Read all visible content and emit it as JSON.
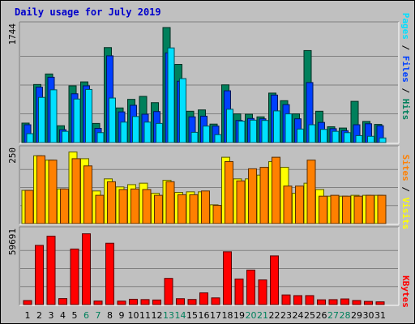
{
  "title": "Daily usage for July 2019",
  "colors": {
    "title": "#0000cc",
    "hits": "#00805c",
    "files": "#0040ff",
    "pages": "#00e0ff",
    "visits": "#ffff00",
    "sites": "#ff8000",
    "kbytes": "#ff0000",
    "weekend_label": "#00805c",
    "panel_bg": "#c0c0c0",
    "grid": "#ffffff"
  },
  "right_labels": {
    "pages": "Pages",
    "files": "Files",
    "hits": "Hits",
    "sites": "Sites",
    "visits": "Visits",
    "kbytes": "KBytes",
    "sep": " / "
  },
  "chart_data": [
    {
      "type": "bar",
      "panel": "hits-files-pages",
      "y_max_label": "1744",
      "ylim": [
        0,
        1744
      ],
      "categories": [
        "1",
        "2",
        "3",
        "4",
        "5",
        "6",
        "7",
        "8",
        "9",
        "10",
        "11",
        "12",
        "13",
        "14",
        "15",
        "16",
        "17",
        "18",
        "19",
        "20",
        "21",
        "22",
        "23",
        "24",
        "25",
        "26",
        "27",
        "28",
        "29",
        "30",
        "31"
      ],
      "weekend_days": [
        "6",
        "7",
        "13",
        "14",
        "20",
        "21",
        "27",
        "28"
      ],
      "series": [
        {
          "name": "Hits",
          "values": [
            295,
            880,
            1040,
            255,
            860,
            920,
            290,
            1440,
            525,
            655,
            700,
            605,
            1744,
            1185,
            475,
            495,
            280,
            875,
            435,
            430,
            390,
            750,
            635,
            435,
            1395,
            475,
            240,
            220,
            625,
            320,
            275
          ]
        },
        {
          "name": "Files",
          "values": [
            270,
            840,
            990,
            195,
            740,
            860,
            215,
            1315,
            465,
            565,
            430,
            470,
            1360,
            930,
            390,
            400,
            250,
            785,
            335,
            365,
            360,
            720,
            575,
            360,
            910,
            305,
            210,
            180,
            270,
            285,
            255
          ]
        },
        {
          "name": "Pages",
          "values": [
            135,
            685,
            800,
            170,
            660,
            805,
            150,
            675,
            310,
            395,
            310,
            290,
            1435,
            970,
            155,
            250,
            120,
            505,
            325,
            340,
            335,
            480,
            435,
            205,
            270,
            200,
            170,
            150,
            105,
            95,
            70
          ]
        }
      ]
    },
    {
      "type": "bar",
      "panel": "visits-sites",
      "y_max_label": "250",
      "ylim": [
        0,
        250
      ],
      "categories": [
        "1",
        "2",
        "3",
        "4",
        "5",
        "6",
        "7",
        "8",
        "9",
        "10",
        "11",
        "12",
        "13",
        "14",
        "15",
        "16",
        "17",
        "18",
        "19",
        "20",
        "21",
        "22",
        "23",
        "24",
        "25",
        "26",
        "27",
        "28",
        "29",
        "30",
        "31"
      ],
      "series": [
        {
          "name": "Visits",
          "values": [
            115,
            235,
            220,
            120,
            248,
            225,
            113,
            155,
            127,
            135,
            140,
            105,
            150,
            108,
            110,
            110,
            65,
            230,
            155,
            155,
            168,
            215,
            195,
            105,
            140,
            118,
            95,
            95,
            98,
            98,
            98
          ]
        },
        {
          "name": "Sites",
          "values": [
            115,
            235,
            220,
            120,
            225,
            200,
            98,
            145,
            118,
            120,
            118,
            98,
            145,
            100,
            100,
            113,
            63,
            215,
            148,
            190,
            195,
            230,
            130,
            130,
            220,
            95,
            98,
            95,
            95,
            98,
            98
          ]
        }
      ]
    },
    {
      "type": "bar",
      "panel": "kbytes",
      "y_max_label": "59691",
      "ylim": [
        0,
        59691
      ],
      "categories": [
        "1",
        "2",
        "3",
        "4",
        "5",
        "6",
        "7",
        "8",
        "9",
        "10",
        "11",
        "12",
        "13",
        "14",
        "15",
        "16",
        "17",
        "18",
        "19",
        "20",
        "21",
        "22",
        "23",
        "24",
        "25",
        "26",
        "27",
        "28",
        "29",
        "30",
        "31"
      ],
      "series": [
        {
          "name": "KBytes",
          "values": [
            3310,
            49000,
            56600,
            4950,
            46000,
            58600,
            2920,
            50800,
            2870,
            4390,
            4130,
            3790,
            21660,
            4860,
            4210,
            9680,
            5530,
            43700,
            21180,
            28560,
            20420,
            40300,
            7970,
            7390,
            7420,
            3940,
            4080,
            4660,
            3350,
            2600,
            2250
          ]
        }
      ]
    }
  ]
}
